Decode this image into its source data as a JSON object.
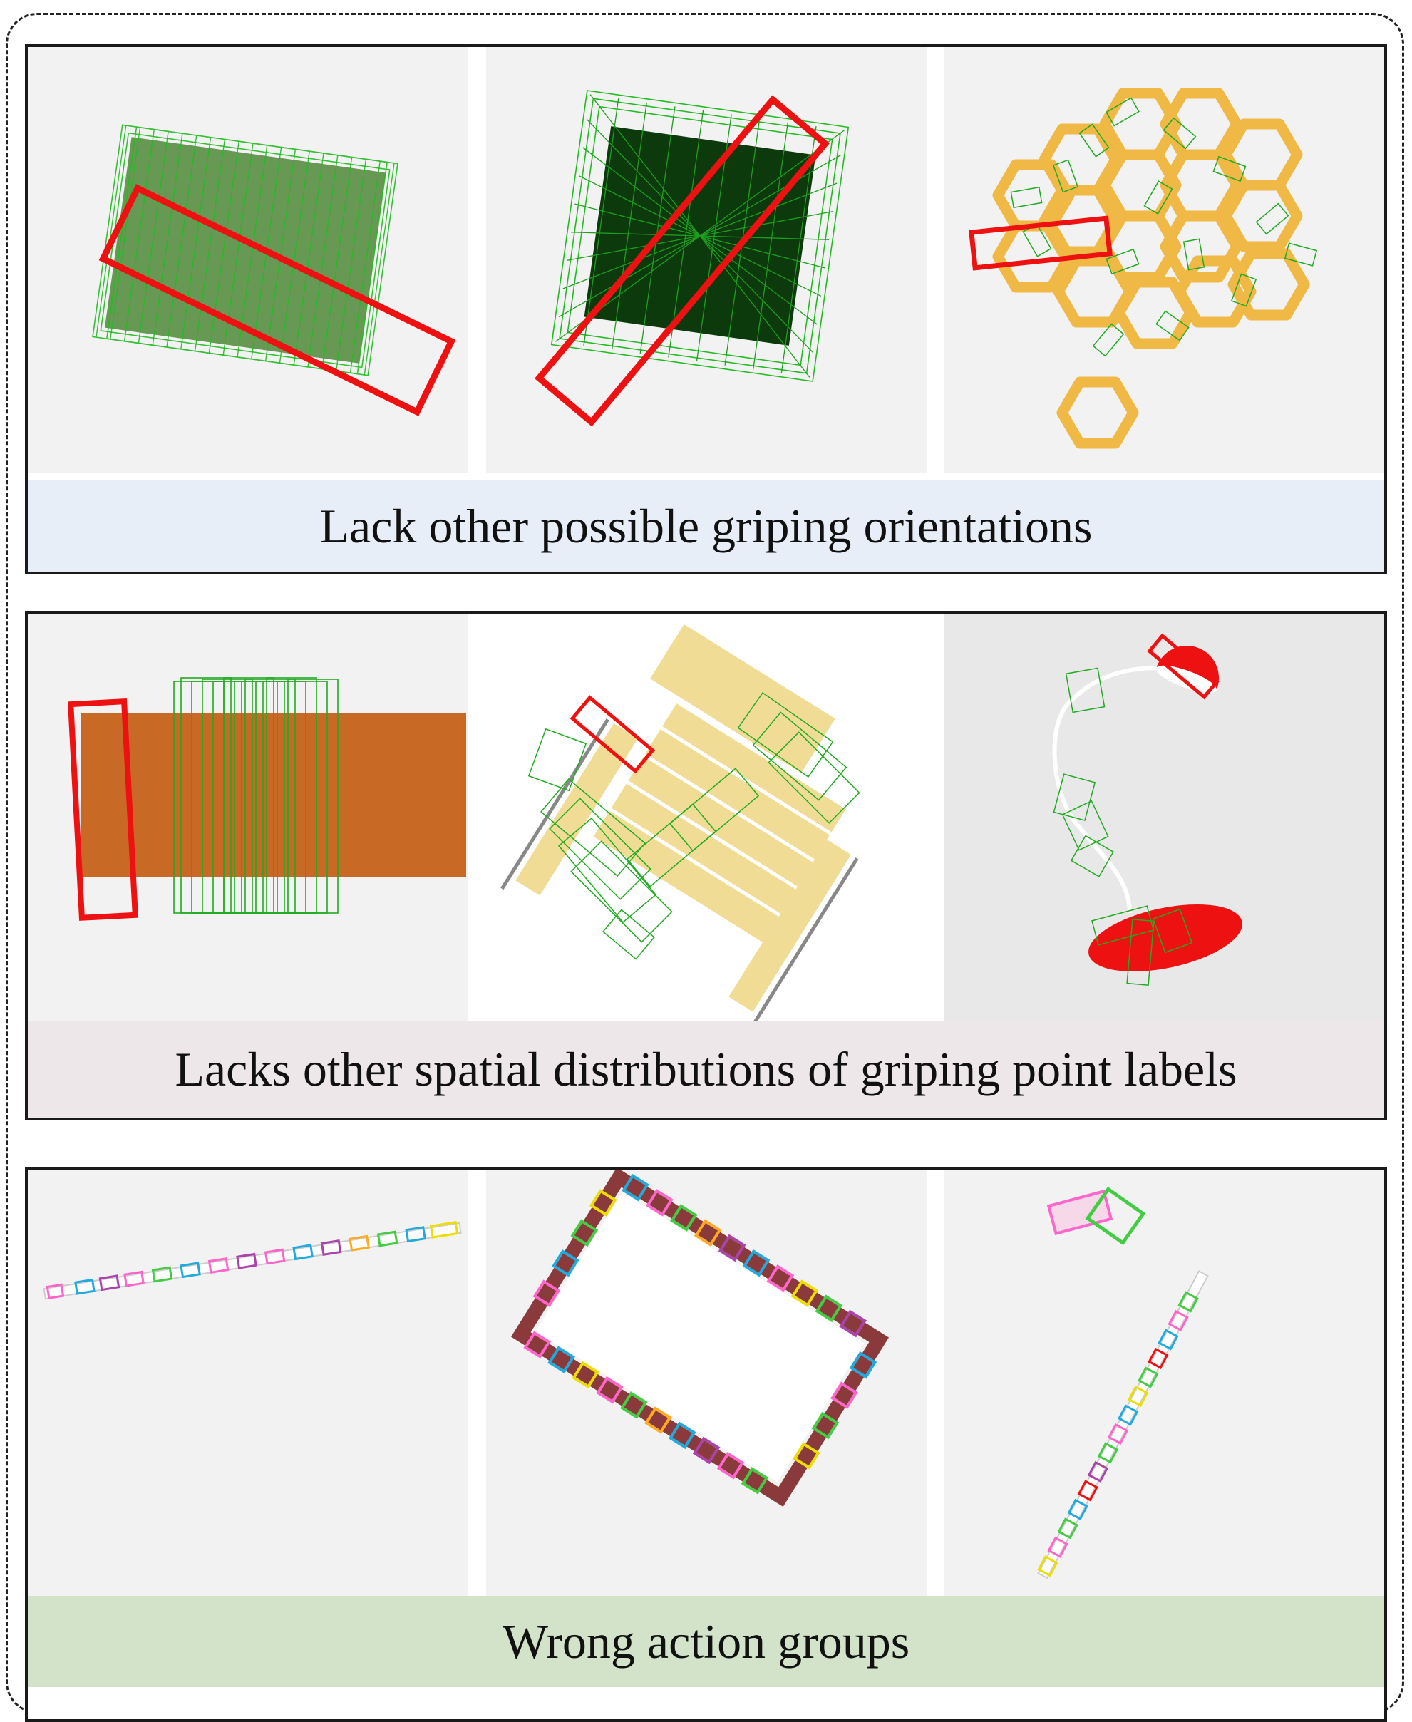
{
  "panels": [
    {
      "caption": "Lack other possible griping orientations",
      "caption_bg": "#e8eef8",
      "images": [
        "box-grasps-image",
        "cube-grasps-image",
        "hexagon-shelf-grasps-image"
      ]
    },
    {
      "caption": "Lacks other spatial distributions of griping point labels",
      "caption_bg": "#ede7e9",
      "images": [
        "wood-plank-grasps-image",
        "chair-grasps-image",
        "lamp-grasps-image"
      ]
    },
    {
      "caption": "Wrong action groups",
      "caption_bg": "#d2e3c9",
      "images": [
        "rod-action-groups-image",
        "frame-action-groups-image",
        "pole-action-groups-image"
      ]
    }
  ],
  "colors": {
    "grasp_green": "#22bb22",
    "highlight_red": "#ee1111",
    "wood_orange": "#c86a26",
    "hex_yellow": "#f0b845",
    "chair_yellow": "#f1dc95"
  }
}
